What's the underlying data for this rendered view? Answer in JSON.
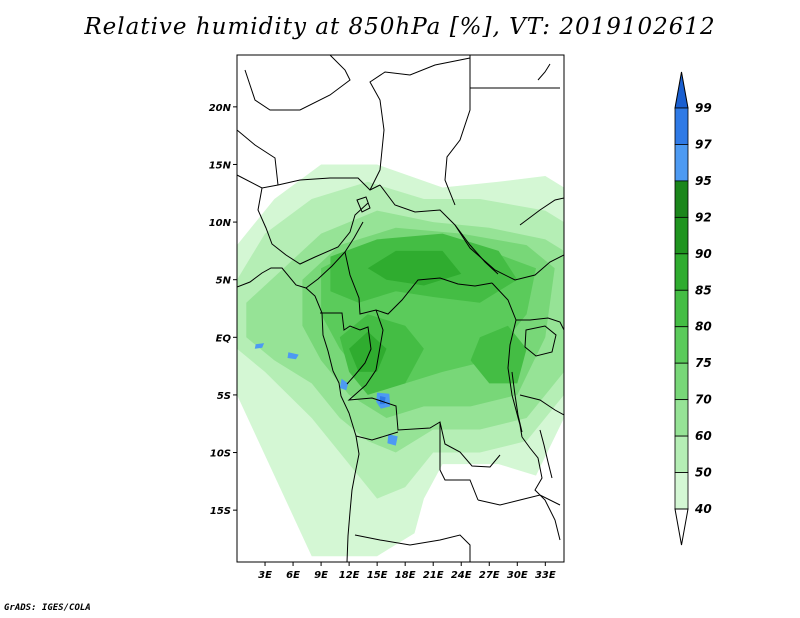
{
  "title": "Relative humidity at 850hPa [%], VT: 2019102612",
  "credit": "GrADS: IGES/COLA",
  "map": {
    "lon_range": [
      0,
      35
    ],
    "lat_range": [
      -19.5,
      24.5
    ],
    "lon_ticks": [
      {
        "value": 3,
        "label": "3E"
      },
      {
        "value": 6,
        "label": "6E"
      },
      {
        "value": 9,
        "label": "9E"
      },
      {
        "value": 12,
        "label": "12E"
      },
      {
        "value": 15,
        "label": "15E"
      },
      {
        "value": 18,
        "label": "18E"
      },
      {
        "value": 21,
        "label": "21E"
      },
      {
        "value": 24,
        "label": "24E"
      },
      {
        "value": 27,
        "label": "27E"
      },
      {
        "value": 30,
        "label": "30E"
      },
      {
        "value": 33,
        "label": "33E"
      }
    ],
    "lat_ticks": [
      {
        "value": 20,
        "label": "20N"
      },
      {
        "value": 15,
        "label": "15N"
      },
      {
        "value": 10,
        "label": "10N"
      },
      {
        "value": 5,
        "label": "5N"
      },
      {
        "value": 0,
        "label": "EQ"
      },
      {
        "value": -5,
        "label": "5S"
      },
      {
        "value": -10,
        "label": "10S"
      },
      {
        "value": -15,
        "label": "15S"
      }
    ]
  },
  "colorbar": {
    "levels": [
      "40",
      "50",
      "60",
      "70",
      "75",
      "80",
      "85",
      "90",
      "92",
      "95",
      "97",
      "99"
    ],
    "colors": [
      "#f0fff0",
      "#d4f7d4",
      "#b5eeb5",
      "#96e396",
      "#78d778",
      "#5bcb5b",
      "#44bd44",
      "#2fac2f",
      "#1f941f",
      "#1b861b",
      "#4d9af2",
      "#2f7ae6",
      "#1a5fd0"
    ],
    "below_color": "#ffffff"
  },
  "humidity_regions": [
    {
      "level": "50",
      "color": "#d4f7d4",
      "points": [
        [
          0,
          8
        ],
        [
          4,
          12
        ],
        [
          9,
          15
        ],
        [
          15,
          15
        ],
        [
          22,
          13
        ],
        [
          28,
          13.5
        ],
        [
          33,
          14
        ],
        [
          35,
          13
        ],
        [
          35,
          -7
        ],
        [
          32,
          -12
        ],
        [
          28,
          -11
        ],
        [
          22,
          -11
        ],
        [
          20,
          -14
        ],
        [
          19,
          -17
        ],
        [
          15,
          -19
        ],
        [
          8,
          -19
        ],
        [
          4,
          -12
        ],
        [
          0,
          -5
        ]
      ]
    },
    {
      "level": "60",
      "color": "#b5eeb5",
      "points": [
        [
          0,
          5
        ],
        [
          3,
          9
        ],
        [
          8,
          12
        ],
        [
          14,
          13.5
        ],
        [
          20,
          12
        ],
        [
          26,
          12
        ],
        [
          33,
          11
        ],
        [
          35,
          10
        ],
        [
          35,
          -5
        ],
        [
          31,
          -9
        ],
        [
          26,
          -10
        ],
        [
          21,
          -10
        ],
        [
          18,
          -13
        ],
        [
          15,
          -14
        ],
        [
          12,
          -11
        ],
        [
          8,
          -7
        ],
        [
          3,
          -3
        ],
        [
          0,
          -1
        ]
      ]
    },
    {
      "level": "70",
      "color": "#96e396",
      "points": [
        [
          1,
          3
        ],
        [
          5,
          6
        ],
        [
          9,
          9
        ],
        [
          15,
          11
        ],
        [
          21,
          10
        ],
        [
          27,
          9.5
        ],
        [
          33,
          8.5
        ],
        [
          35,
          7.5
        ],
        [
          35,
          -3
        ],
        [
          31,
          -7
        ],
        [
          26,
          -8
        ],
        [
          21,
          -8
        ],
        [
          17,
          -10
        ],
        [
          14,
          -9
        ],
        [
          11,
          -7
        ],
        [
          8,
          -4
        ],
        [
          4,
          -2
        ],
        [
          1,
          0
        ]
      ]
    },
    {
      "level": "75",
      "color": "#78d778",
      "points": [
        [
          7,
          5
        ],
        [
          11,
          8
        ],
        [
          17,
          9.5
        ],
        [
          24,
          9
        ],
        [
          31,
          8
        ],
        [
          34,
          6
        ],
        [
          33,
          0
        ],
        [
          30,
          -5
        ],
        [
          25,
          -6
        ],
        [
          20,
          -6
        ],
        [
          16,
          -7
        ],
        [
          12,
          -5
        ],
        [
          9,
          -2
        ],
        [
          7,
          1
        ]
      ]
    },
    {
      "level": "80",
      "color": "#5bcb5b",
      "points": [
        [
          9,
          6
        ],
        [
          14,
          8
        ],
        [
          20,
          8.5
        ],
        [
          27,
          7.5
        ],
        [
          32,
          6
        ],
        [
          31,
          2
        ],
        [
          27,
          -2
        ],
        [
          22,
          -3
        ],
        [
          18,
          -4
        ],
        [
          14,
          -4
        ],
        [
          11,
          -1
        ],
        [
          9,
          2
        ]
      ]
    },
    {
      "level": "85",
      "color": "#44bd44",
      "points": [
        [
          10,
          7
        ],
        [
          15,
          8.5
        ],
        [
          22,
          9
        ],
        [
          28,
          7.5
        ],
        [
          30,
          5
        ],
        [
          26,
          3
        ],
        [
          21,
          3.5
        ],
        [
          17,
          4
        ],
        [
          13,
          3
        ],
        [
          10,
          4
        ]
      ]
    },
    {
      "level": "85",
      "color": "#44bd44",
      "points": [
        [
          11,
          0
        ],
        [
          14,
          2
        ],
        [
          18,
          1
        ],
        [
          20,
          -1
        ],
        [
          18,
          -4
        ],
        [
          14,
          -5
        ],
        [
          12,
          -3
        ]
      ]
    },
    {
      "level": "85",
      "color": "#44bd44",
      "points": [
        [
          26,
          0
        ],
        [
          29,
          1
        ],
        [
          31,
          -1
        ],
        [
          30,
          -4
        ],
        [
          27,
          -4
        ],
        [
          25,
          -2
        ]
      ]
    },
    {
      "level": "90",
      "color": "#2fac2f",
      "points": [
        [
          14,
          6
        ],
        [
          17,
          7.5
        ],
        [
          22,
          7.5
        ],
        [
          24,
          5.5
        ],
        [
          20,
          4.5
        ],
        [
          16,
          5
        ]
      ]
    },
    {
      "level": "90",
      "color": "#2fac2f",
      "points": [
        [
          12,
          -1
        ],
        [
          14,
          0.5
        ],
        [
          16,
          -1
        ],
        [
          15,
          -3
        ],
        [
          13,
          -3
        ]
      ]
    },
    {
      "level": "97",
      "color": "#4d9af2",
      "points": [
        [
          15,
          -4.8
        ],
        [
          16.3,
          -4.9
        ],
        [
          16.4,
          -6
        ],
        [
          15.4,
          -6.2
        ],
        [
          14.9,
          -5.6
        ]
      ]
    },
    {
      "level": "97",
      "color": "#4d9af2",
      "points": [
        [
          16.2,
          -8.4
        ],
        [
          17.2,
          -8.6
        ],
        [
          17,
          -9.4
        ],
        [
          16.1,
          -9.2
        ]
      ]
    },
    {
      "level": "97",
      "color": "#4d9af2",
      "points": [
        [
          2,
          -0.6
        ],
        [
          2.9,
          -0.5
        ],
        [
          2.7,
          -0.9
        ],
        [
          1.9,
          -1
        ]
      ]
    },
    {
      "level": "97",
      "color": "#4d9af2",
      "points": [
        [
          5.5,
          -1.3
        ],
        [
          6.6,
          -1.5
        ],
        [
          6.3,
          -1.9
        ],
        [
          5.4,
          -1.8
        ]
      ]
    },
    {
      "level": "97",
      "color": "#4d9af2",
      "points": [
        [
          11.2,
          -3.6
        ],
        [
          11.9,
          -4
        ],
        [
          11.7,
          -4.6
        ],
        [
          11,
          -4.4
        ]
      ]
    },
    {
      "level": "99",
      "color": "#2f7ae6",
      "points": [
        [
          15.3,
          -5.1
        ],
        [
          15.9,
          -5.2
        ],
        [
          15.8,
          -5.8
        ],
        [
          15.3,
          -5.8
        ]
      ]
    }
  ]
}
